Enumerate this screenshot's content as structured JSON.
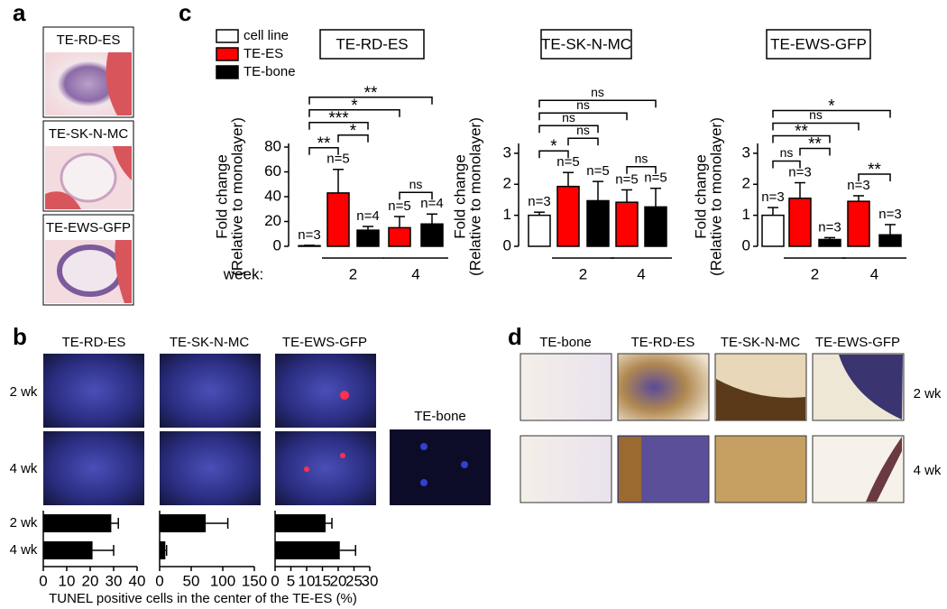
{
  "figure": {
    "panel_labels": [
      "a",
      "b",
      "c",
      "d"
    ],
    "a": {
      "labels": [
        "TE-RD-ES",
        "TE-SK-N-MC",
        "TE-EWS-GFP"
      ]
    },
    "b": {
      "columns": [
        "TE-RD-ES",
        "TE-SK-N-MC",
        "TE-EWS-GFP"
      ],
      "rows": [
        "2 wk",
        "4 wk"
      ],
      "control": "TE-bone",
      "x_label": "TUNEL positive cells in the center of the TE-ES (%)"
    },
    "d": {
      "columns": [
        "TE-bone",
        "TE-RD-ES",
        "TE-SK-N-MC",
        "TE-EWS-GFP"
      ],
      "rows": [
        "2 wk",
        "4 wk"
      ]
    }
  },
  "chart_data": [
    {
      "type": "bar",
      "title": "TE-RD-ES",
      "y_label": [
        "Fold change",
        "(Relative to monolayer)"
      ],
      "x_label": "week:",
      "groups": [
        "2",
        "4"
      ],
      "legend": "top-left",
      "series": [
        {
          "name": "cell line",
          "color": "#ffffff",
          "values": [
            0.5,
            null,
            null,
            null,
            null
          ],
          "errors": [
            0.3,
            null,
            null,
            null,
            null
          ]
        },
        {
          "name": "TE-ES",
          "color": "#ff0000",
          "values": [
            null,
            43,
            null,
            15,
            null
          ],
          "errors": [
            null,
            19,
            null,
            9,
            null
          ]
        },
        {
          "name": "TE-bone",
          "color": "#000000",
          "values": [
            null,
            null,
            13,
            null,
            18
          ],
          "errors": [
            null,
            null,
            3,
            null,
            8
          ]
        }
      ],
      "sample_sizes": [
        "n=3",
        "n=5",
        "n=4",
        "n=5",
        "n=4"
      ],
      "ylim": [
        0,
        80
      ],
      "yticks": [
        0,
        20,
        40,
        60,
        80
      ],
      "significance": [
        {
          "between": [
            0,
            1
          ],
          "label": "**"
        },
        {
          "between": [
            1,
            2
          ],
          "label": "*"
        },
        {
          "between": [
            0,
            2
          ],
          "label": "***"
        },
        {
          "between": [
            0,
            3
          ],
          "label": "*"
        },
        {
          "between": [
            3,
            4
          ],
          "label": "ns"
        },
        {
          "between": [
            0,
            4
          ],
          "label": "**"
        }
      ]
    },
    {
      "type": "bar",
      "title": "TE-SK-N-MC",
      "y_label": [
        "Fold change",
        "(Relative to monolayer)"
      ],
      "groups": [
        "2",
        "4"
      ],
      "series": [
        {
          "color": "#ffffff",
          "values": [
            1.0,
            null,
            null,
            null,
            null
          ],
          "errors": [
            0.1,
            null,
            null,
            null,
            null
          ]
        },
        {
          "color": "#ff0000",
          "values": [
            null,
            1.93,
            null,
            1.42,
            null
          ],
          "errors": [
            null,
            0.45,
            null,
            0.4,
            null
          ]
        },
        {
          "color": "#000000",
          "values": [
            null,
            null,
            1.47,
            null,
            1.27
          ],
          "errors": [
            null,
            null,
            0.62,
            null,
            0.6
          ]
        }
      ],
      "sample_sizes": [
        "n=3",
        "n=5",
        "n=5",
        "n=5",
        "n=5"
      ],
      "ylim": [
        0,
        3.2
      ],
      "yticks": [
        0,
        1,
        2,
        3
      ],
      "significance": [
        {
          "between": [
            0,
            1
          ],
          "label": "*"
        },
        {
          "between": [
            1,
            2
          ],
          "label": "ns"
        },
        {
          "between": [
            0,
            2
          ],
          "label": "ns"
        },
        {
          "between": [
            0,
            3
          ],
          "label": "ns"
        },
        {
          "between": [
            3,
            4
          ],
          "label": "ns"
        },
        {
          "between": [
            0,
            4
          ],
          "label": "ns"
        }
      ]
    },
    {
      "type": "bar",
      "title": "TE-EWS-GFP",
      "y_label": [
        "Fold change",
        "(Relative to monolayer)"
      ],
      "groups": [
        "2",
        "4"
      ],
      "series": [
        {
          "color": "#ffffff",
          "values": [
            1.0,
            null,
            null,
            null,
            null
          ],
          "errors": [
            0.25,
            null,
            null,
            null,
            null
          ]
        },
        {
          "color": "#ff0000",
          "values": [
            null,
            1.55,
            null,
            1.45,
            null
          ],
          "errors": [
            null,
            0.5,
            null,
            0.18,
            null
          ]
        },
        {
          "color": "#000000",
          "values": [
            null,
            null,
            0.22,
            null,
            0.37
          ],
          "errors": [
            null,
            null,
            0.06,
            null,
            0.33
          ]
        }
      ],
      "sample_sizes": [
        "n=3",
        "n=3",
        "n=3",
        "n=3",
        "n=3"
      ],
      "ylim": [
        0,
        3.2
      ],
      "yticks": [
        0,
        1,
        2,
        3
      ],
      "significance": [
        {
          "between": [
            0,
            1
          ],
          "label": "ns"
        },
        {
          "between": [
            1,
            2
          ],
          "label": "**"
        },
        {
          "between": [
            0,
            2
          ],
          "label": "**"
        },
        {
          "between": [
            0,
            3
          ],
          "label": "ns"
        },
        {
          "between": [
            3,
            4
          ],
          "label": "**"
        },
        {
          "between": [
            0,
            4
          ],
          "label": "*"
        }
      ]
    },
    {
      "type": "barh",
      "categories": [
        "2 wk",
        "4 wk"
      ],
      "values": [
        29,
        21
      ],
      "errors": [
        3,
        9
      ],
      "color": "#000000",
      "xlim": [
        0,
        40
      ],
      "xticks": [
        0,
        10,
        20,
        30,
        40
      ]
    },
    {
      "type": "barh",
      "values": [
        73,
        9
      ],
      "errors": [
        35,
        2
      ],
      "color": "#000000",
      "xlim": [
        0,
        150
      ],
      "xticks": [
        0,
        50,
        100,
        150
      ]
    },
    {
      "type": "barh",
      "values": [
        16,
        20.5
      ],
      "errors": [
        2,
        5
      ],
      "color": "#000000",
      "xlim": [
        0,
        30
      ],
      "xticks": [
        0,
        5,
        10,
        15,
        20,
        25,
        30
      ]
    }
  ]
}
